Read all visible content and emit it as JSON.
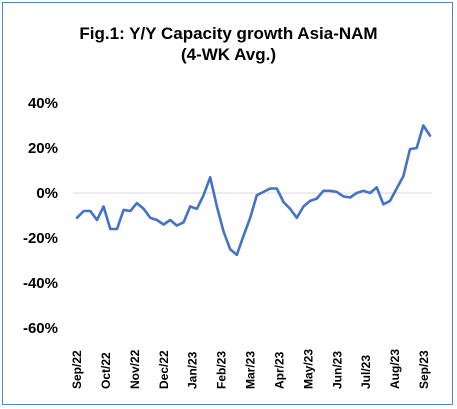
{
  "chart_data": {
    "type": "line",
    "title_lines": [
      "Fig.1: Y/Y Capacity growth Asia-NAM",
      "(4-WK Avg.)"
    ],
    "xlabel": "",
    "ylabel": "",
    "ylim": [
      -60,
      40
    ],
    "y_ticks": [
      40,
      20,
      0,
      -20,
      -40,
      -60
    ],
    "y_tick_labels": [
      "40%",
      "20%",
      "0%",
      "-20%",
      "-40%",
      "-60%"
    ],
    "x_tick_labels": [
      "Sep/22",
      "Oct/22",
      "Nov/22",
      "Dec/22",
      "Jan/23",
      "Feb/23",
      "Mar/23",
      "Apr/23",
      "May/23",
      "Jun/23",
      "Jul/23",
      "Aug/23",
      "Sep/23"
    ],
    "series": [
      {
        "color": "#4472c4",
        "values": [
          -11,
          -8,
          -8,
          -12,
          -6,
          -16,
          -16,
          -7.5,
          -8,
          -4.5,
          -7,
          -11,
          -12,
          -14,
          -12,
          -14.5,
          -13,
          -6,
          -7,
          -1,
          7,
          -6,
          -17,
          -25,
          -27.5,
          -19,
          -11,
          -1,
          0.5,
          2,
          2,
          -4,
          -7,
          -11,
          -6,
          -3.5,
          -2.5,
          1,
          1,
          0.5,
          -1.5,
          -2,
          0,
          1,
          0,
          2.5,
          -5,
          -3.5,
          2,
          7.5,
          19.5,
          20,
          30,
          25.5
        ]
      }
    ]
  }
}
